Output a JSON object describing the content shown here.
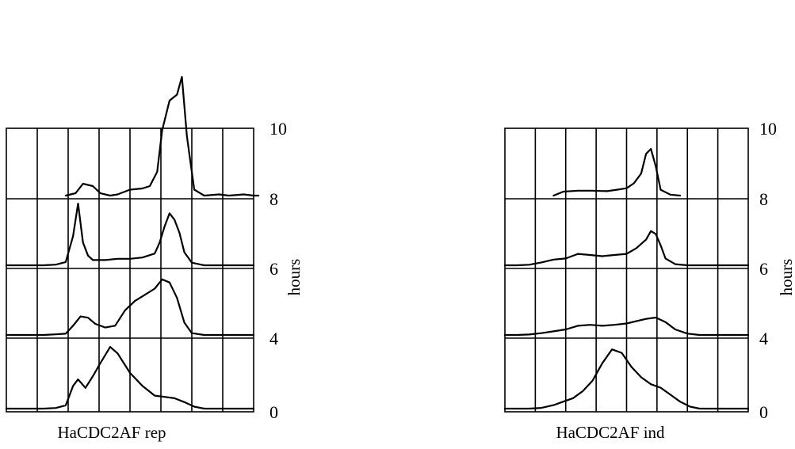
{
  "chart_data": [
    {
      "type": "line",
      "title": "HaCDC2AF rep",
      "ylabel": "hours",
      "x_scale": "DNA content",
      "grid": true,
      "rows": [
        {
          "hours": "10",
          "x": [
            0.24,
            0.28,
            0.31,
            0.35,
            0.38,
            0.42,
            0.45,
            0.5,
            0.55,
            0.58,
            0.61,
            0.63,
            0.66,
            0.69,
            0.71,
            0.73,
            0.76,
            0.8,
            0.86,
            0.9,
            0.96,
            1.0,
            1.02
          ],
          "y": [
            0.0,
            0.02,
            0.1,
            0.08,
            0.02,
            0.0,
            0.01,
            0.05,
            0.06,
            0.08,
            0.2,
            0.55,
            0.8,
            0.85,
            1.0,
            0.5,
            0.05,
            0.0,
            0.01,
            0.0,
            0.01,
            0.0,
            0.0
          ]
        },
        {
          "hours": "8",
          "x": [
            0.0,
            0.05,
            0.1,
            0.15,
            0.2,
            0.24,
            0.27,
            0.29,
            0.31,
            0.33,
            0.35,
            0.4,
            0.45,
            0.5,
            0.55,
            0.6,
            0.62,
            0.64,
            0.66,
            0.68,
            0.7,
            0.72,
            0.75,
            0.8,
            0.9,
            1.0
          ],
          "y": [
            0.0,
            0.0,
            0.0,
            0.0,
            0.01,
            0.05,
            0.45,
            0.95,
            0.35,
            0.15,
            0.08,
            0.08,
            0.1,
            0.1,
            0.12,
            0.18,
            0.35,
            0.6,
            0.8,
            0.7,
            0.5,
            0.2,
            0.04,
            0.0,
            0.0,
            0.0
          ]
        },
        {
          "hours": "6",
          "x": [
            0.0,
            0.05,
            0.1,
            0.15,
            0.2,
            0.24,
            0.27,
            0.3,
            0.33,
            0.36,
            0.4,
            0.44,
            0.48,
            0.52,
            0.56,
            0.6,
            0.63,
            0.66,
            0.69,
            0.72,
            0.75,
            0.8,
            0.9,
            1.0
          ],
          "y": [
            0.0,
            0.0,
            0.0,
            0.0,
            0.01,
            0.02,
            0.15,
            0.3,
            0.28,
            0.18,
            0.12,
            0.15,
            0.4,
            0.55,
            0.65,
            0.75,
            0.9,
            0.85,
            0.6,
            0.2,
            0.03,
            0.0,
            0.0,
            0.0
          ]
        },
        {
          "hours": "4",
          "x": [
            0.0,
            0.05,
            0.1,
            0.15,
            0.2,
            0.24,
            0.27,
            0.29,
            0.32,
            0.35,
            0.38,
            0.42,
            0.45,
            0.5,
            0.55,
            0.6,
            0.64,
            0.68,
            0.72,
            0.76,
            0.8,
            0.85,
            0.9,
            1.0
          ],
          "y": [
            0.0,
            0.0,
            0.0,
            0.0,
            0.01,
            0.05,
            0.35,
            0.45,
            0.32,
            0.5,
            0.7,
            0.95,
            0.85,
            0.55,
            0.35,
            0.2,
            0.18,
            0.16,
            0.1,
            0.03,
            0.0,
            0.0,
            0.0,
            0.0
          ]
        },
        {
          "hours": "0",
          "x": [
            0.0,
            0.05,
            0.1,
            0.15,
            0.2,
            0.24,
            0.27,
            0.3,
            0.33,
            0.36,
            0.4,
            0.44,
            0.48,
            0.52,
            0.56,
            0.6,
            0.63,
            0.66,
            0.7,
            0.75,
            0.8,
            0.9,
            1.0
          ],
          "y": [
            0.0,
            0.0,
            0.03,
            0.05,
            0.08,
            0.2,
            0.6,
            0.85,
            0.8,
            0.55,
            0.35,
            0.25,
            0.2,
            0.15,
            0.12,
            0.13,
            0.16,
            0.12,
            0.06,
            0.02,
            0.0,
            0.0,
            0.0
          ]
        }
      ],
      "hour_labels": [
        "10",
        "8",
        "6",
        "4",
        "0"
      ]
    },
    {
      "type": "line",
      "title": "HaCDC2AF ind",
      "ylabel": "hours",
      "x_scale": "DNA content",
      "grid": true,
      "rows": [
        {
          "hours": "10",
          "x": [
            0.2,
            0.24,
            0.3,
            0.36,
            0.42,
            0.46,
            0.5,
            0.53,
            0.56,
            0.58,
            0.6,
            0.62,
            0.64,
            0.68,
            0.72
          ],
          "y": [
            0.0,
            0.08,
            0.1,
            0.1,
            0.09,
            0.12,
            0.15,
            0.25,
            0.45,
            0.85,
            0.95,
            0.6,
            0.12,
            0.02,
            0.0
          ]
        },
        {
          "hours": "8",
          "x": [
            0.0,
            0.05,
            0.1,
            0.15,
            0.2,
            0.25,
            0.3,
            0.35,
            0.4,
            0.45,
            0.5,
            0.54,
            0.58,
            0.6,
            0.62,
            0.64,
            0.66,
            0.7,
            0.75,
            0.8,
            0.9,
            1.0
          ],
          "y": [
            0.0,
            0.0,
            0.01,
            0.05,
            0.1,
            0.12,
            0.2,
            0.18,
            0.16,
            0.18,
            0.2,
            0.3,
            0.45,
            0.6,
            0.55,
            0.35,
            0.12,
            0.02,
            0.0,
            0.0,
            0.0,
            0.0
          ]
        },
        {
          "hours": "6",
          "x": [
            0.0,
            0.05,
            0.1,
            0.15,
            0.2,
            0.25,
            0.3,
            0.35,
            0.4,
            0.45,
            0.5,
            0.54,
            0.58,
            0.62,
            0.66,
            0.7,
            0.75,
            0.8,
            0.9,
            1.0
          ],
          "y": [
            0.0,
            0.0,
            0.01,
            0.04,
            0.08,
            0.12,
            0.2,
            0.22,
            0.2,
            0.22,
            0.25,
            0.3,
            0.35,
            0.38,
            0.28,
            0.12,
            0.03,
            0.0,
            0.0,
            0.0
          ]
        },
        {
          "hours": "4",
          "x": [
            0.0,
            0.05,
            0.1,
            0.15,
            0.2,
            0.24,
            0.28,
            0.32,
            0.36,
            0.4,
            0.44,
            0.48,
            0.52,
            0.56,
            0.6,
            0.64,
            0.68,
            0.72,
            0.76,
            0.8,
            0.85,
            0.9,
            1.0
          ],
          "y": [
            0.0,
            0.0,
            0.0,
            0.01,
            0.05,
            0.1,
            0.15,
            0.25,
            0.4,
            0.65,
            0.85,
            0.8,
            0.6,
            0.45,
            0.35,
            0.3,
            0.2,
            0.1,
            0.03,
            0.0,
            0.0,
            0.0,
            0.0
          ]
        },
        {
          "hours": "0",
          "x": [
            0.0,
            0.03,
            0.07,
            0.1,
            0.14,
            0.17,
            0.2,
            0.22,
            0.24,
            0.27,
            0.3,
            0.34,
            0.38,
            0.42,
            0.46,
            0.5,
            0.54,
            0.58,
            0.62,
            0.66,
            0.7,
            0.8,
            0.9,
            1.0
          ],
          "y": [
            0.0,
            0.03,
            0.06,
            0.08,
            0.1,
            0.3,
            0.7,
            0.95,
            0.75,
            0.5,
            0.3,
            0.2,
            0.15,
            0.14,
            0.15,
            0.18,
            0.15,
            0.13,
            0.08,
            0.03,
            0.0,
            0.0,
            0.0,
            0.0
          ]
        }
      ],
      "hour_labels": [
        "10",
        "8",
        "6",
        "4",
        "0"
      ]
    }
  ]
}
